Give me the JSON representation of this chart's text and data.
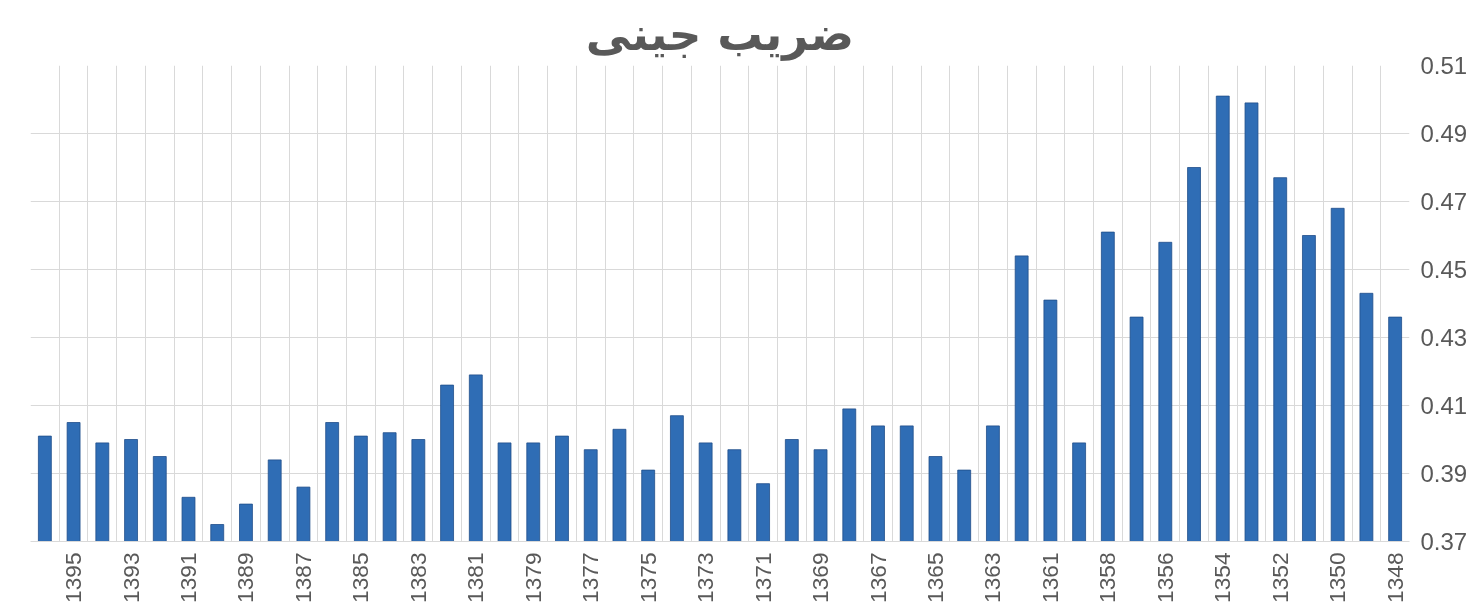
{
  "chart_data": {
    "type": "bar",
    "title": "ضریب جینی",
    "categories": [
      null,
      "1395",
      null,
      "1393",
      null,
      "1391",
      null,
      "1389",
      null,
      "1387",
      null,
      "1385",
      null,
      "1383",
      null,
      "1381",
      null,
      "1379",
      null,
      "1377",
      null,
      "1375",
      null,
      "1373",
      null,
      "1371",
      null,
      "1369",
      null,
      "1367",
      null,
      "1365",
      null,
      "1363",
      null,
      "1361",
      null,
      "1358",
      null,
      "1356",
      null,
      "1354",
      null,
      "1352",
      null,
      "1350",
      null,
      "1348"
    ],
    "values": [
      0.401,
      0.405,
      0.399,
      0.4,
      0.395,
      0.383,
      0.375,
      0.381,
      0.394,
      0.386,
      0.405,
      0.401,
      0.402,
      0.4,
      0.416,
      0.419,
      0.399,
      0.399,
      0.401,
      0.397,
      0.403,
      0.391,
      0.407,
      0.399,
      0.397,
      0.387,
      0.4,
      0.397,
      0.409,
      0.404,
      0.404,
      0.395,
      0.391,
      0.404,
      0.454,
      0.441,
      0.399,
      0.461,
      0.436,
      0.458,
      0.48,
      0.501,
      0.499,
      0.477,
      0.46,
      0.468,
      0.443,
      0.436
    ],
    "color": "#2f6db5",
    "ylim": [
      0.37,
      0.51
    ],
    "yticks": [
      0.37,
      0.39,
      0.41,
      0.43,
      0.45,
      0.47,
      0.49,
      0.51
    ],
    "grid": true
  }
}
